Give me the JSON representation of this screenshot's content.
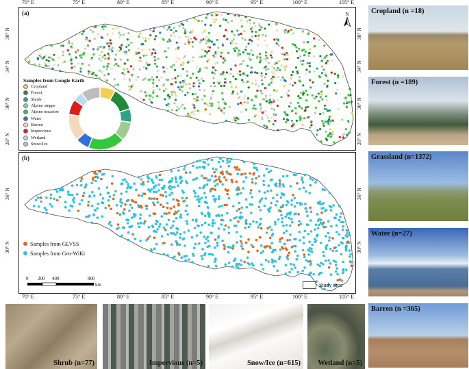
{
  "map_a": {
    "panel_label": "(a)",
    "legend_title": "Samples from Google Earth",
    "classes": [
      {
        "name": "Cropland",
        "color": "#f2cf52"
      },
      {
        "name": "Forest",
        "color": "#1f8a3a"
      },
      {
        "name": "Shrub",
        "color": "#2fa389"
      },
      {
        "name": "Alpine steppe",
        "color": "#9ecb8f"
      },
      {
        "name": "Alpine meadow",
        "color": "#34c739"
      },
      {
        "name": "Water",
        "color": "#2f6fd8"
      },
      {
        "name": "Barren",
        "color": "#f3d9bd"
      },
      {
        "name": "Impervious",
        "color": "#e01b1b"
      },
      {
        "name": "Wetland",
        "color": "#b8daf2"
      },
      {
        "name": "Snow/Ice",
        "color": "#bdbdbd"
      }
    ],
    "donut_shares": [
      0.08,
      0.12,
      0.07,
      0.1,
      0.19,
      0.07,
      0.14,
      0.08,
      0.05,
      0.1
    ],
    "north_label": "N"
  },
  "map_b": {
    "panel_label": "(b)",
    "legend": [
      {
        "name": "Samples from GLVSS",
        "color": "#e8641c"
      },
      {
        "name": "Samples from Geo-WiKi",
        "color": "#2ec3dc"
      }
    ],
    "scale_ticks": [
      "0",
      "200",
      "400",
      "800"
    ],
    "scale_unit": "km",
    "study_area_label": "Study area"
  },
  "axes": {
    "lon_ticks": [
      "70° E",
      "75° E",
      "80° E",
      "85° E",
      "90° E",
      "95° E",
      "100° E",
      "105° E"
    ],
    "lat_ticks_a": [
      "38° N",
      "34° N",
      "30° N",
      "26° N"
    ],
    "lat_ticks_b": [
      "36° N",
      "30° N"
    ]
  },
  "photos_right": [
    {
      "label": "Cropland (n =18)",
      "theme": "cropland"
    },
    {
      "label": "Forest (n =189)",
      "theme": "forest"
    },
    {
      "label": "Grassland (n=1372)",
      "theme": "grassland"
    },
    {
      "label": "Water (n=27)",
      "theme": "water"
    },
    {
      "label": "Barren (n =365)",
      "theme": "barren"
    }
  ],
  "photos_bottom": [
    {
      "label": "Shrub (n=77)",
      "theme": "shrub"
    },
    {
      "label": "Impervious (n=5)",
      "theme": "impervious"
    },
    {
      "label": "Snow/Ice (n=615)",
      "theme": "snow"
    },
    {
      "label": "Wetland (n=5)",
      "theme": "wetland"
    }
  ]
}
